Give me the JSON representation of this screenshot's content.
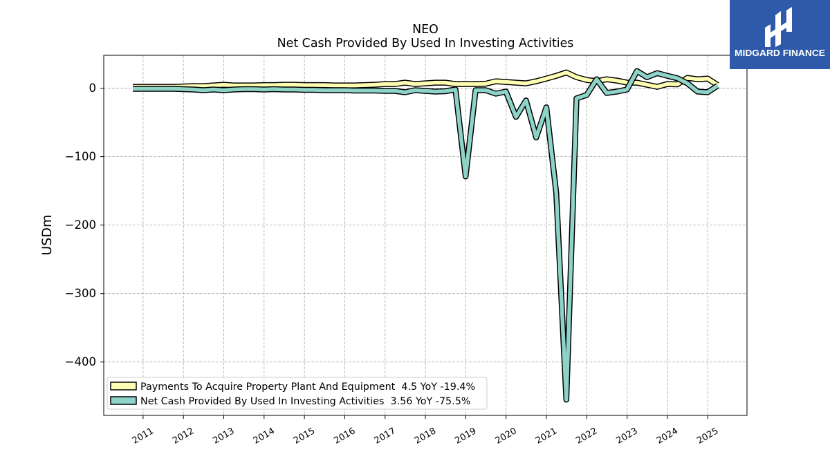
{
  "logo": {
    "text": "MIDGARD FINANCE",
    "bg_color": "#2f5aaa",
    "icon": "midgard-logo-icon"
  },
  "chart_data": {
    "type": "line",
    "title": "NEO",
    "subtitle": "Net Cash Provided By Used In Investing Activities",
    "xlabel": "",
    "ylabel": "USDm",
    "x_ticks": [
      "2011",
      "2012",
      "2013",
      "2014",
      "2015",
      "2016",
      "2017",
      "2018",
      "2019",
      "2020",
      "2021",
      "2022",
      "2023",
      "2024",
      "2025"
    ],
    "y_ticks": [
      0,
      -100,
      -200,
      -300,
      -400
    ],
    "y_tick_labels": [
      "0",
      "−100",
      "−200",
      "−300",
      "−400"
    ],
    "xlim": [
      "2010-01-10",
      "2025-12-22"
    ],
    "ylim": [
      -478,
      48
    ],
    "grid": true,
    "legend_position": "lower-left",
    "x": [
      "2010-09-30",
      "2010-12-31",
      "2011-03-31",
      "2011-06-30",
      "2011-09-30",
      "2011-12-31",
      "2012-03-31",
      "2012-06-30",
      "2012-09-30",
      "2012-12-31",
      "2013-03-31",
      "2013-06-30",
      "2013-09-30",
      "2013-12-31",
      "2014-03-31",
      "2014-06-30",
      "2014-09-30",
      "2014-12-31",
      "2015-03-31",
      "2015-06-30",
      "2015-09-30",
      "2015-12-31",
      "2016-03-31",
      "2016-06-30",
      "2016-09-30",
      "2016-12-31",
      "2017-03-31",
      "2017-06-30",
      "2017-09-30",
      "2017-12-31",
      "2018-03-31",
      "2018-06-30",
      "2018-09-30",
      "2018-12-31",
      "2019-03-31",
      "2019-06-30",
      "2019-09-30",
      "2019-12-31",
      "2020-03-31",
      "2020-06-30",
      "2020-09-30",
      "2020-12-31",
      "2021-03-31",
      "2021-06-30",
      "2021-09-30",
      "2021-12-31",
      "2022-03-31",
      "2022-06-30",
      "2022-09-30",
      "2022-12-31",
      "2023-03-31",
      "2023-06-30",
      "2023-09-30",
      "2023-12-31",
      "2024-03-31",
      "2024-06-30",
      "2024-09-30",
      "2024-12-31",
      "2025-03-31"
    ],
    "series": [
      {
        "name": "Payments To Acquire Property Plant And Equipment  4.5 YoY -19.4%",
        "color": "#ffffb3",
        "values": [
          2,
          2,
          2,
          2,
          2,
          2.5,
          3,
          3,
          4,
          5,
          4,
          4,
          4,
          4.5,
          4.5,
          5,
          5,
          4.5,
          4.5,
          4.5,
          4,
          4,
          4,
          4.5,
          5,
          6,
          6,
          8,
          6,
          7,
          8,
          8,
          6,
          6,
          6,
          6.5,
          10,
          9,
          8,
          7,
          10,
          14,
          18,
          23,
          16,
          12,
          10,
          13,
          11,
          8,
          8,
          5,
          2,
          6,
          5.6,
          15,
          13,
          14,
          4.5
        ]
      },
      {
        "name": "Net Cash Provided By Used In Investing Activities  3.56 YoY -75.5%",
        "color": "#8dd3c7",
        "values": [
          -1,
          -1,
          -1,
          -1,
          -1,
          -1.5,
          -2,
          -3,
          -2,
          -3,
          -2,
          -1.5,
          -1.5,
          -2,
          -1.5,
          -2,
          -2,
          -2.5,
          -2.5,
          -3,
          -3,
          -3,
          -3.5,
          -3.5,
          -3.5,
          -4,
          -4,
          -6,
          -3,
          -4,
          -5,
          -4.5,
          -2,
          -129,
          -3,
          -3,
          -8,
          -5,
          -42,
          -18,
          -72,
          -28,
          -153,
          -455,
          -15,
          -10,
          13,
          -7,
          -5,
          -2,
          25,
          16,
          22,
          18,
          14.5,
          7,
          -5,
          -6,
          3.56
        ]
      }
    ]
  }
}
